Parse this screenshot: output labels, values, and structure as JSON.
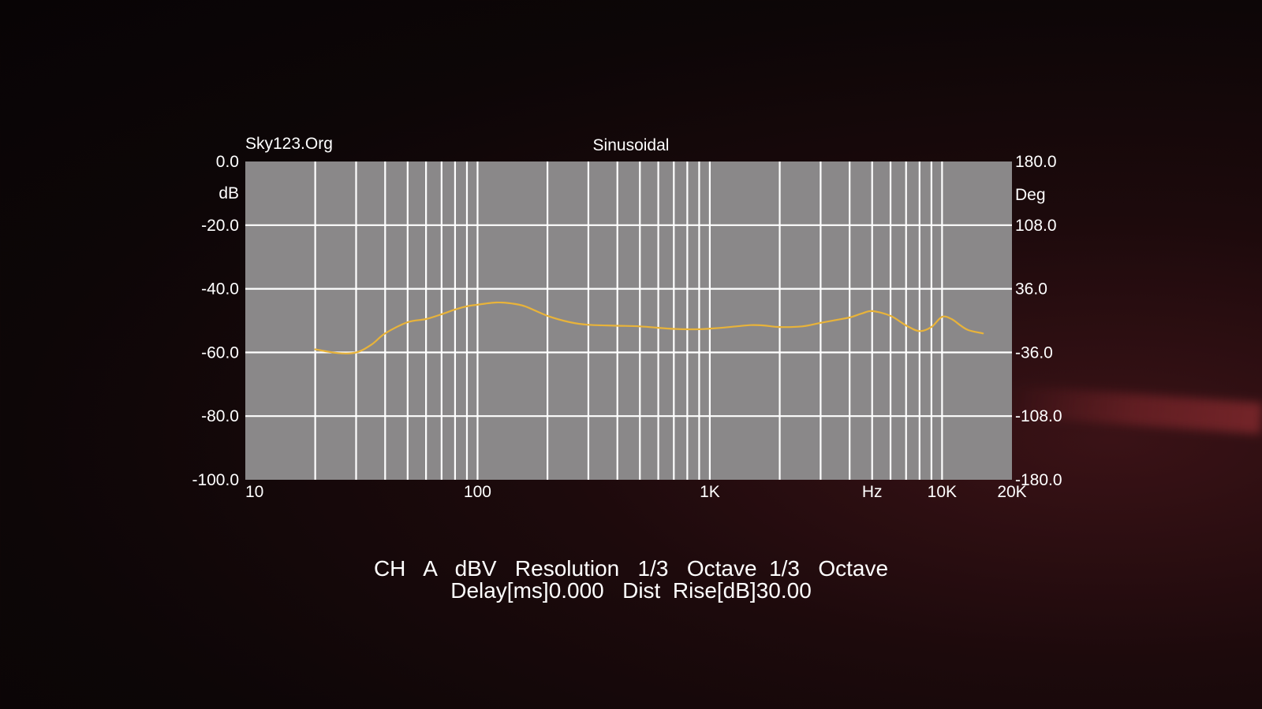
{
  "header": {
    "brand": "Sky123.Org",
    "title": "Sinusoidal"
  },
  "footer": {
    "line1": "CH   A   dBV   Resolution   1/3   Octave  1/3   Octave",
    "line2": "Delay[ms]0.000   Dist  Rise[dB]30.00"
  },
  "chart_data": {
    "type": "line",
    "title": "Sinusoidal",
    "x_scale": "log",
    "xlim": [
      10,
      20000
    ],
    "ylim": [
      -100,
      0
    ],
    "y2lim": [
      -180,
      180
    ],
    "grid": true,
    "ylabel": "dB",
    "y2label": "Deg",
    "x_tick_labels": [
      {
        "value": 10,
        "label": "10"
      },
      {
        "value": 100,
        "label": "100"
      },
      {
        "value": 1000,
        "label": "1K"
      },
      {
        "value": 5000,
        "label": "Hz"
      },
      {
        "value": 10000,
        "label": "10K"
      },
      {
        "value": 20000,
        "label": "20K"
      }
    ],
    "y_tick_labels": [
      {
        "value": 0,
        "label": "0.0"
      },
      {
        "value": -20,
        "label": "-20.0"
      },
      {
        "value": -40,
        "label": "-40.0"
      },
      {
        "value": -60,
        "label": "-60.0"
      },
      {
        "value": -80,
        "label": "-80.0"
      },
      {
        "value": -100,
        "label": "-100.0"
      }
    ],
    "y2_tick_labels": [
      {
        "value": 180,
        "label": "180.0"
      },
      {
        "value": 108,
        "label": "108.0"
      },
      {
        "value": 36,
        "label": "36.0"
      },
      {
        "value": -36,
        "label": "-36.0"
      },
      {
        "value": -108,
        "label": "-108.0"
      },
      {
        "value": -180,
        "label": "-180.0"
      }
    ],
    "series": [
      {
        "color": "#e8b33a",
        "x": [
          20,
          25,
          30,
          35,
          40,
          50,
          60,
          70,
          80,
          90,
          100,
          120,
          140,
          160,
          200,
          250,
          300,
          400,
          500,
          700,
          900,
          1100,
          1300,
          1500,
          1700,
          2000,
          2500,
          3000,
          3500,
          4000,
          4500,
          5000,
          6000,
          7000,
          8000,
          9000,
          10000,
          11000,
          12000,
          13000,
          15000
        ],
        "values": [
          -59.0,
          -60.2,
          -60.0,
          -57.5,
          -54.0,
          -50.5,
          -49.5,
          -48.0,
          -46.5,
          -45.5,
          -45.0,
          -44.3,
          -44.6,
          -45.5,
          -48.5,
          -50.5,
          -51.3,
          -51.6,
          -51.8,
          -52.6,
          -52.7,
          -52.3,
          -51.8,
          -51.4,
          -51.5,
          -52.0,
          -51.8,
          -50.7,
          -49.8,
          -49.0,
          -47.8,
          -47.0,
          -48.5,
          -51.5,
          -53.3,
          -52.0,
          -48.8,
          -49.5,
          -51.5,
          -53.0,
          -54.0
        ]
      }
    ]
  }
}
